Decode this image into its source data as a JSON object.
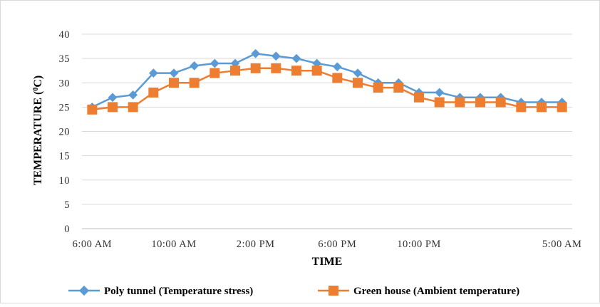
{
  "chart_data": {
    "type": "line",
    "xlabel": "TIME",
    "ylabel": "TEMPERATURE (",
    "ylabel_sup": "0",
    "ylabel_suffix": "C)",
    "ylim": [
      0,
      40
    ],
    "yticks": [
      0,
      5,
      10,
      15,
      20,
      25,
      30,
      35,
      40
    ],
    "grid": "horizontal",
    "legend_position": "bottom",
    "x_tick_labels": [
      {
        "index": 0,
        "label": "6:00 AM"
      },
      {
        "index": 4,
        "label": "10:00 AM"
      },
      {
        "index": 8,
        "label": "2:00 PM"
      },
      {
        "index": 12,
        "label": "6:00 PM"
      },
      {
        "index": 16,
        "label": "10:00 PM"
      },
      {
        "index": 23,
        "label": "5:00 AM"
      }
    ],
    "series": [
      {
        "name": "Poly tunnel (Temperature stress)",
        "color": "#5b9bd5",
        "marker": "diamond",
        "values": [
          25,
          27,
          27.5,
          32,
          32,
          33.5,
          34,
          34,
          36,
          35.5,
          35,
          34,
          33.3,
          32,
          30,
          30,
          28,
          28,
          27,
          27,
          27,
          26,
          26,
          26
        ]
      },
      {
        "name": "Green house (Ambient temperature)",
        "color": "#ed7d31",
        "marker": "square",
        "values": [
          24.5,
          25,
          25,
          28,
          30,
          30,
          32,
          32.5,
          33,
          33,
          32.5,
          32.5,
          31,
          30,
          29,
          29,
          27,
          26,
          26,
          26,
          26,
          25,
          25,
          25
        ]
      }
    ]
  }
}
